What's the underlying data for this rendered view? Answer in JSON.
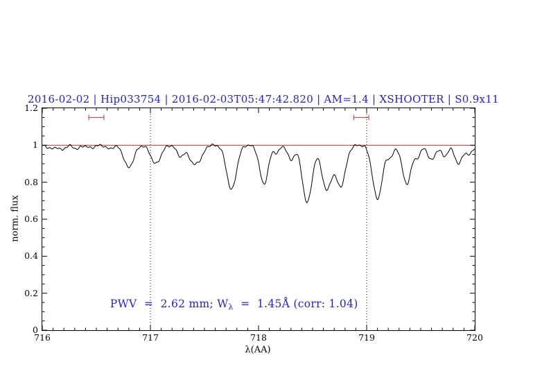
{
  "colors": {
    "accent_blue": "#2222cc",
    "line_red": "#cc3333",
    "spectrum_black": "#000000"
  },
  "title": "2016-02-02 | Hip033754 | 2016-02-03T05:47:42.820 | AM=1.4 | XSHOOTER | S0.9x11",
  "axes": {
    "xlabel": "λ(AA)",
    "ylabel": "norm. flux"
  },
  "annotation": {
    "pre": "PWV  =  2.62 mm; W",
    "sub": "λ",
    "post": "  =  1.45Å (corr: 1.04)"
  },
  "chart_data": {
    "type": "line",
    "title": "2016-02-02 | Hip033754 | 2016-02-03T05:47:42.820 | AM=1.4 | XSHOOTER | S0.9x11",
    "xlabel": "λ(AA)",
    "ylabel": "norm. flux",
    "xlim": [
      716,
      720
    ],
    "ylim": [
      0,
      1.2
    ],
    "xticks": [
      716,
      717,
      718,
      719,
      720
    ],
    "yticks": [
      0,
      0.2,
      0.4,
      0.6,
      0.8,
      1,
      1.2
    ],
    "x_minor_step": 0.1,
    "y_minor_step": 0.05,
    "grid": false,
    "legend": "none",
    "continuum": 1.0,
    "reference_line_y": 1.0,
    "dotted_vlines": [
      717,
      719
    ],
    "range_markers": [
      {
        "x_center": 716.5,
        "half_width": 0.07,
        "y": 1.15
      },
      {
        "x_center": 718.95,
        "half_width": 0.07,
        "y": 1.15
      }
    ],
    "annotation_text": "PWV = 2.62 mm; W_λ = 1.45Å (corr: 1.04)",
    "annotation_xy": [
      716.5,
      0.2
    ],
    "absorption_lines": [
      [
        716.08,
        0.02,
        0.03
      ],
      [
        716.18,
        0.025,
        0.03
      ],
      [
        716.32,
        0.02,
        0.03
      ],
      [
        716.45,
        0.015,
        0.03
      ],
      [
        716.62,
        0.02,
        0.03
      ],
      [
        716.8,
        0.12,
        0.045
      ],
      [
        717.05,
        0.1,
        0.045
      ],
      [
        717.28,
        0.06,
        0.035
      ],
      [
        717.4,
        0.1,
        0.04
      ],
      [
        717.47,
        0.05,
        0.03
      ],
      [
        717.75,
        0.24,
        0.045
      ],
      [
        718.05,
        0.21,
        0.04
      ],
      [
        718.17,
        0.04,
        0.025
      ],
      [
        718.3,
        0.08,
        0.03
      ],
      [
        718.45,
        0.31,
        0.045
      ],
      [
        718.63,
        0.24,
        0.045
      ],
      [
        718.76,
        0.22,
        0.045
      ],
      [
        719.1,
        0.29,
        0.045
      ],
      [
        719.22,
        0.06,
        0.03
      ],
      [
        719.37,
        0.21,
        0.04
      ],
      [
        719.47,
        0.06,
        0.03
      ],
      [
        719.6,
        0.08,
        0.035
      ],
      [
        719.72,
        0.06,
        0.03
      ],
      [
        719.85,
        0.1,
        0.035
      ],
      [
        719.95,
        0.05,
        0.03
      ]
    ]
  }
}
